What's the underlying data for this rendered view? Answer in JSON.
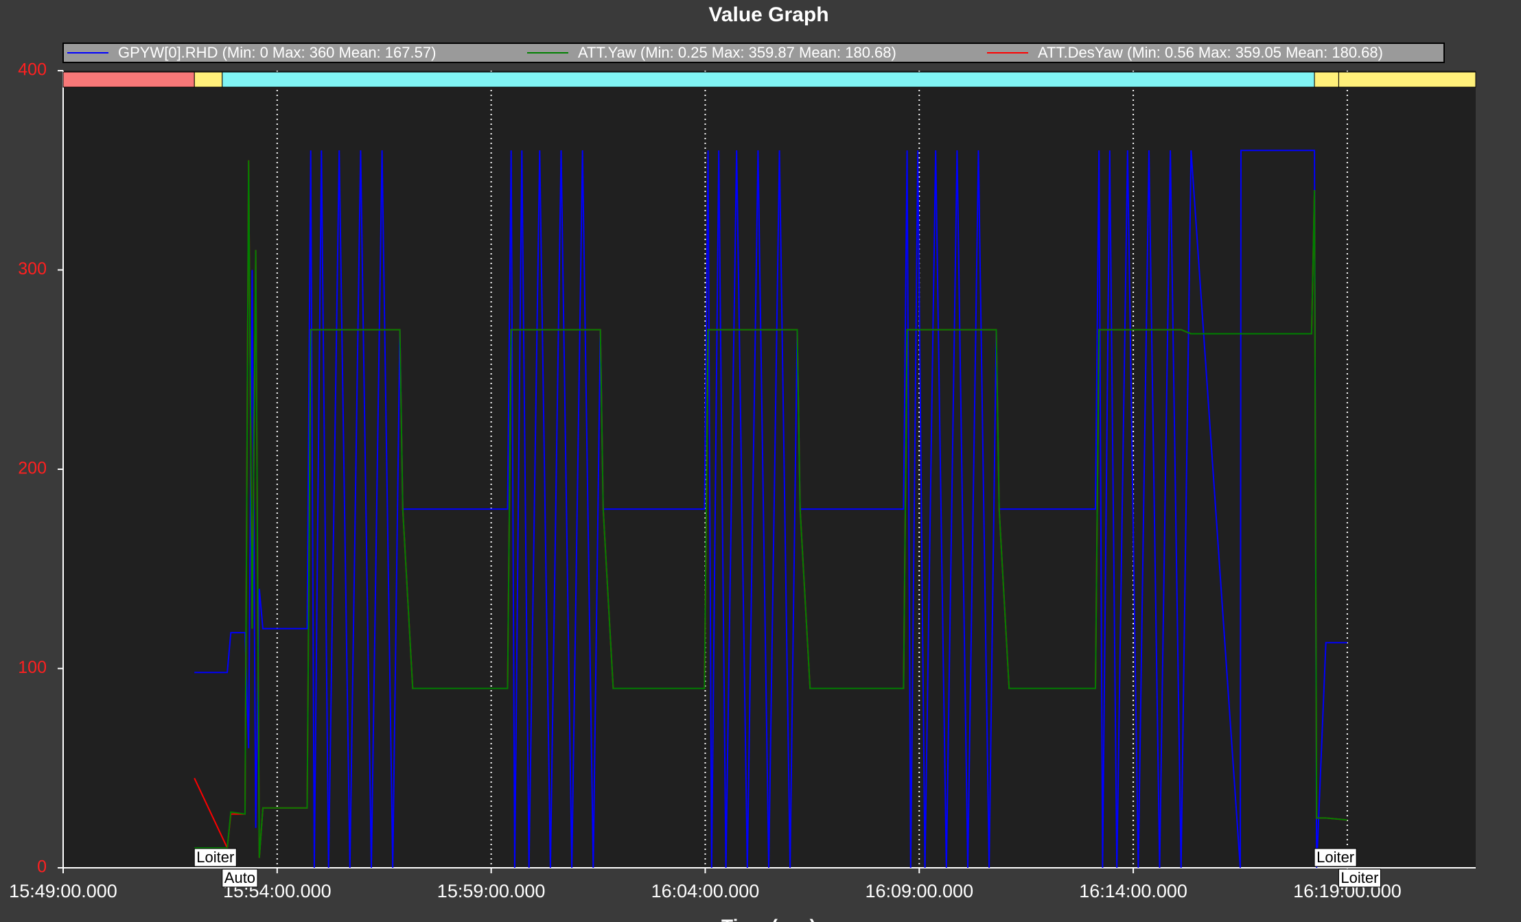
{
  "chart_data": {
    "type": "line",
    "title": "Value Graph",
    "xlabel": "Time (sec)",
    "xlim": [
      "15:49:00.000",
      "16:22:00.000"
    ],
    "xticks": [
      "15:49:00.000",
      "15:54:00.000",
      "15:59:00.000",
      "16:04:00.000",
      "16:09:00.000",
      "16:14:00.000",
      "16:19:00.000"
    ],
    "ylim": [
      0,
      400
    ],
    "yticks": [
      0,
      100,
      200,
      300,
      400
    ],
    "grid": true,
    "modes": {
      "times": [
        "15:49:00.000",
        "15:52:04.000",
        "15:52:43.000",
        "16:18:14.000",
        "16:18:48.000"
      ],
      "labels": [
        null,
        "Loiter",
        "Auto",
        "Loiter",
        "Loiter"
      ],
      "colors": [
        "#f87878",
        "#fff07a",
        "#80f4f4",
        "#fff07a",
        "#fff07a"
      ]
    },
    "x": [
      "15:52:04.000",
      "15:52:50.000",
      "15:52:55.000",
      "15:53:15.000",
      "15:53:20.000",
      "15:53:25.000",
      "15:53:30.000",
      "15:53:35.000",
      "15:53:40.000",
      "15:54:42.000",
      "15:54:47.000",
      "15:54:52.000",
      "15:55:02.000",
      "15:55:12.000",
      "15:55:27.000",
      "15:55:42.000",
      "15:55:57.000",
      "15:56:12.000",
      "15:56:27.000",
      "15:56:42.000",
      "15:56:52.000",
      "15:56:56.000",
      "15:57:10.000",
      "15:59:23.000",
      "15:59:28.000",
      "15:59:33.000",
      "15:59:43.000",
      "15:59:53.000",
      "16:00:08.000",
      "16:00:23.000",
      "16:00:38.000",
      "16:00:53.000",
      "16:01:08.000",
      "16:01:23.000",
      "16:01:33.000",
      "16:01:37.000",
      "16:01:51.000",
      "16:03:59.000",
      "16:04:04.000",
      "16:04:09.000",
      "16:04:19.000",
      "16:04:29.000",
      "16:04:44.000",
      "16:04:59.000",
      "16:05:14.000",
      "16:05:29.000",
      "16:05:44.000",
      "16:05:59.000",
      "16:06:09.000",
      "16:06:13.000",
      "16:06:27.000",
      "16:08:38.000",
      "16:08:43.000",
      "16:08:48.000",
      "16:08:58.000",
      "16:09:08.000",
      "16:09:23.000",
      "16:09:38.000",
      "16:09:53.000",
      "16:10:08.000",
      "16:10:23.000",
      "16:10:38.000",
      "16:10:48.000",
      "16:10:52.000",
      "16:11:06.000",
      "16:13:07.000",
      "16:13:12.000",
      "16:13:17.000",
      "16:13:27.000",
      "16:13:37.000",
      "16:13:52.000",
      "16:14:07.000",
      "16:14:22.000",
      "16:14:37.000",
      "16:14:52.000",
      "16:15:07.000",
      "16:15:21.000",
      "16:16:30.000",
      "16:16:31.000",
      "16:18:10.000",
      "16:18:14.000",
      "16:18:17.000",
      "16:18:30.000",
      "16:19:00.000"
    ],
    "series": [
      {
        "name": "GPYW[0].RHD  (Min: 0 Max: 360 Mean: 167.57)",
        "color": "#0000ff",
        "values": [
          98,
          98,
          118,
          118,
          60,
          300,
          20,
          140,
          120,
          120,
          360,
          0,
          360,
          0,
          360,
          0,
          360,
          0,
          360,
          0,
          270,
          180,
          180,
          180,
          360,
          0,
          360,
          0,
          360,
          0,
          360,
          0,
          360,
          0,
          270,
          180,
          180,
          180,
          360,
          0,
          360,
          0,
          360,
          0,
          360,
          0,
          360,
          0,
          270,
          180,
          180,
          180,
          360,
          0,
          360,
          0,
          360,
          0,
          360,
          0,
          360,
          0,
          270,
          180,
          180,
          180,
          360,
          0,
          360,
          0,
          360,
          0,
          360,
          0,
          360,
          0,
          360,
          0,
          360,
          360,
          360,
          0,
          113,
          113
        ]
      },
      {
        "name": "ATT.Yaw  (Min: 0.25 Max: 359.87 Mean: 180.68)",
        "color": "#008000",
        "values": [
          10,
          10,
          28,
          27,
          355,
          120,
          310,
          5,
          30,
          30,
          270,
          270,
          270,
          270,
          270,
          270,
          270,
          270,
          270,
          270,
          270,
          180,
          90,
          90,
          270,
          270,
          270,
          270,
          270,
          270,
          270,
          270,
          270,
          270,
          270,
          180,
          90,
          90,
          270,
          270,
          270,
          270,
          270,
          270,
          270,
          270,
          270,
          270,
          270,
          180,
          90,
          90,
          270,
          270,
          270,
          270,
          270,
          270,
          270,
          270,
          270,
          270,
          270,
          180,
          90,
          90,
          270,
          270,
          270,
          270,
          270,
          270,
          270,
          270,
          270,
          270,
          268,
          268,
          268,
          268,
          340,
          25,
          25,
          24
        ]
      },
      {
        "name": "ATT.DesYaw  (Min: 0.56 Max: 359.05 Mean: 180.68)",
        "color": "#ff0000",
        "values": [
          45,
          10,
          27,
          27,
          355,
          120,
          310,
          5,
          30,
          30,
          270,
          270,
          270,
          270,
          270,
          270,
          270,
          270,
          270,
          270,
          270,
          180,
          90,
          90,
          270,
          270,
          270,
          270,
          270,
          270,
          270,
          270,
          270,
          270,
          270,
          180,
          90,
          90,
          270,
          270,
          270,
          270,
          270,
          270,
          270,
          270,
          270,
          270,
          270,
          180,
          90,
          90,
          270,
          270,
          270,
          270,
          270,
          270,
          270,
          270,
          270,
          270,
          270,
          180,
          90,
          90,
          270,
          270,
          270,
          270,
          270,
          270,
          270,
          270,
          270,
          270,
          268,
          268,
          268,
          268,
          340,
          25,
          25,
          24
        ]
      }
    ]
  }
}
